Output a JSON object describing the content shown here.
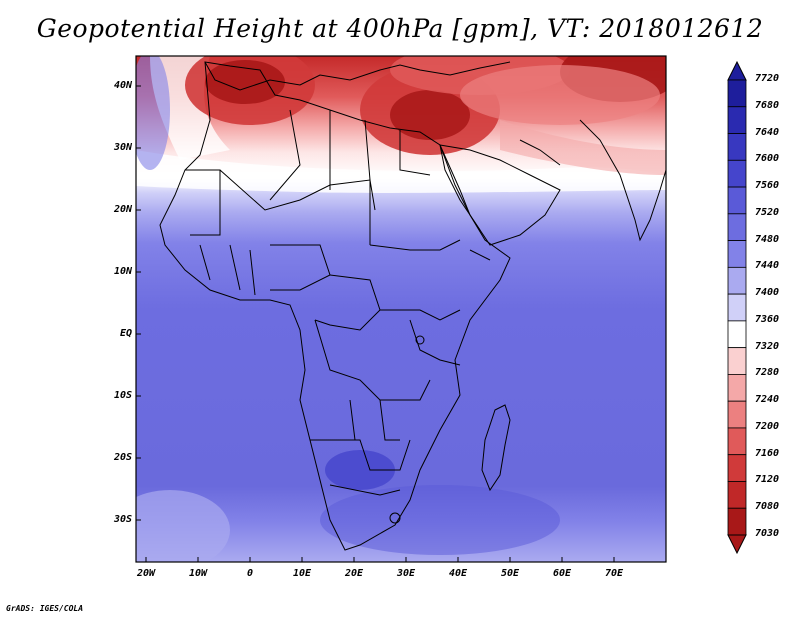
{
  "title": "Geopotential Height at 400hPa [gpm], VT: 2018012612",
  "credit": "GrADS: IGES/COLA",
  "lat_labels": [
    "40N",
    "30N",
    "20N",
    "10N",
    "EQ",
    "10S",
    "20S",
    "30S"
  ],
  "lon_labels": [
    "20W",
    "10W",
    "0",
    "10E",
    "20E",
    "30E",
    "40E",
    "50E",
    "60E",
    "70E"
  ],
  "legend_levels": [
    "7720",
    "7680",
    "7640",
    "7600",
    "7560",
    "7520",
    "7480",
    "7440",
    "7400",
    "7360",
    "7320",
    "7280",
    "7240",
    "7200",
    "7160",
    "7120",
    "7080",
    "7030"
  ],
  "legend_colors": [
    "#1e1e9c",
    "#2a2ab0",
    "#3838c0",
    "#4545cc",
    "#5a5ad8",
    "#6d6de0",
    "#8282e8",
    "#aaaaf0",
    "#d0d0f8",
    "#ffffff",
    "#fad0d0",
    "#f4a8a8",
    "#ec8080",
    "#e05a5a",
    "#d03a3a",
    "#c02828",
    "#a81818"
  ],
  "colors": {
    "dark_red": "#a81818",
    "mid_blue": "#6d6de0"
  },
  "map_extent": {
    "lon": [
      -22,
      80
    ],
    "lat": [
      -37,
      45
    ]
  }
}
